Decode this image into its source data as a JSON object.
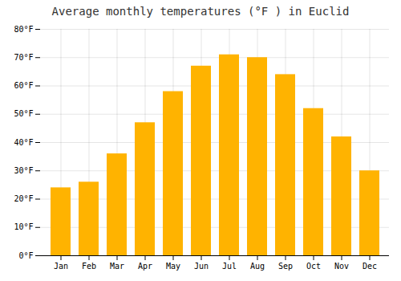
{
  "chart_data": {
    "type": "bar",
    "title": "Average monthly temperatures (°F ) in Euclid",
    "categories": [
      "Jan",
      "Feb",
      "Mar",
      "Apr",
      "May",
      "Jun",
      "Jul",
      "Aug",
      "Sep",
      "Oct",
      "Nov",
      "Dec"
    ],
    "values": [
      24,
      26,
      36,
      47,
      58,
      67,
      71,
      70,
      64,
      52,
      42,
      30
    ],
    "color": "#FFB300",
    "ylim": [
      0,
      80
    ],
    "yticks": [
      {
        "value": 0,
        "label": "0°F"
      },
      {
        "value": 10,
        "label": "10°F"
      },
      {
        "value": 20,
        "label": "20°F"
      },
      {
        "value": 30,
        "label": "30°F"
      },
      {
        "value": 40,
        "label": "40°F"
      },
      {
        "value": 50,
        "label": "50°F"
      },
      {
        "value": 60,
        "label": "60°F"
      },
      {
        "value": 70,
        "label": "70°F"
      },
      {
        "value": 80,
        "label": "80°F"
      }
    ],
    "grid": true
  }
}
